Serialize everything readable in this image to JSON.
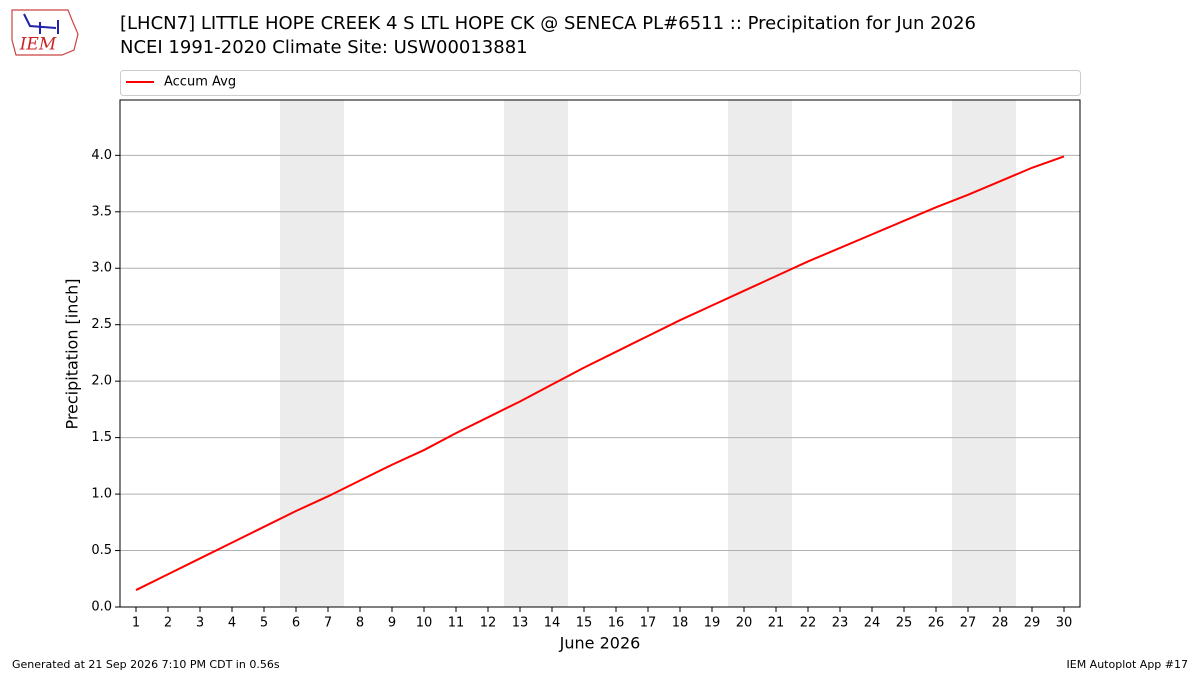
{
  "chart_data": {
    "type": "line",
    "title": "[LHCN7] LITTLE HOPE CREEK 4 S LTL HOPE CK @ SENECA PL#6511 :: Precipitation for Jun 2026",
    "subtitle": "NCEI 1991-2020 Climate Site: USW00013881",
    "x": [
      1,
      2,
      3,
      4,
      5,
      6,
      7,
      8,
      9,
      10,
      11,
      12,
      13,
      14,
      15,
      16,
      17,
      18,
      19,
      20,
      21,
      22,
      23,
      24,
      25,
      26,
      27,
      28,
      29,
      30
    ],
    "series": [
      {
        "name": "Accum Avg",
        "color": "#ff0000",
        "values": [
          0.15,
          0.29,
          0.43,
          0.57,
          0.71,
          0.85,
          0.98,
          1.12,
          1.26,
          1.39,
          1.54,
          1.68,
          1.82,
          1.97,
          2.12,
          2.26,
          2.4,
          2.54,
          2.67,
          2.8,
          2.93,
          3.06,
          3.18,
          3.3,
          3.42,
          3.54,
          3.65,
          3.77,
          3.89,
          3.99
        ]
      }
    ],
    "xlim": [
      0.5,
      30.5
    ],
    "ylim": [
      0,
      4.49
    ],
    "xticks": [
      1,
      2,
      3,
      4,
      5,
      6,
      7,
      8,
      9,
      10,
      11,
      12,
      13,
      14,
      15,
      16,
      17,
      18,
      19,
      20,
      21,
      22,
      23,
      24,
      25,
      26,
      27,
      28,
      29,
      30
    ],
    "yticks": [
      {
        "value": 0,
        "label": "0.0"
      },
      {
        "value": 0.5,
        "label": "0.5"
      },
      {
        "value": 1,
        "label": "1.0"
      },
      {
        "value": 1.5,
        "label": "1.5"
      },
      {
        "value": 2,
        "label": "2.0"
      },
      {
        "value": 2.5,
        "label": "2.5"
      },
      {
        "value": 3,
        "label": "3.0"
      },
      {
        "value": 3.5,
        "label": "3.5"
      },
      {
        "value": 4,
        "label": "4.0"
      }
    ],
    "xlabel": "June 2026",
    "ylabel": "Precipitation [inch]",
    "grid": true,
    "shaded_spans": [
      [
        5.5,
        7.5
      ],
      [
        12.5,
        14.5
      ],
      [
        19.5,
        21.5
      ],
      [
        26.5,
        28.5
      ]
    ],
    "shade_color": "#ececec"
  },
  "footer": {
    "left": "Generated at 21 Sep 2026 7:10 PM CDT in 0.56s",
    "right": "IEM Autoplot App #17"
  },
  "logo": {
    "text": "IEM"
  }
}
